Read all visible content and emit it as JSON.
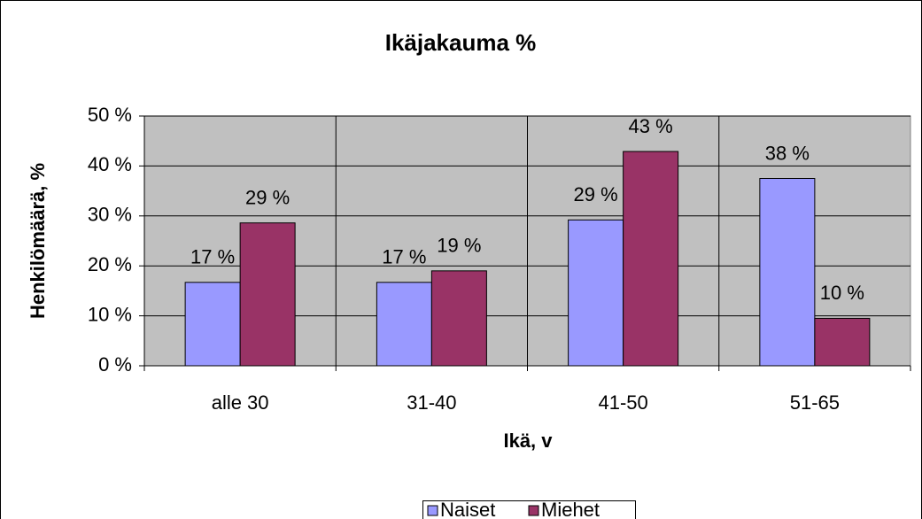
{
  "chart_data": {
    "type": "bar",
    "title": "Ikäjakauma %",
    "x_label": "Ikä, v",
    "y_label": "Henkilömäärä, %",
    "categories": [
      "alle 30",
      "31-40",
      "41-50",
      "51-65"
    ],
    "series": [
      {
        "name": "Naiset",
        "color": "#9999ff",
        "values": [
          16.7,
          16.7,
          29.2,
          37.5
        ],
        "value_labels": [
          "17 %",
          "17 %",
          "29 %",
          "38 %"
        ]
      },
      {
        "name": "Miehet",
        "color": "#993366",
        "values": [
          28.6,
          19.0,
          42.9,
          9.5
        ],
        "value_labels": [
          "29 %",
          "19 %",
          "43 %",
          "10 %"
        ]
      }
    ],
    "ylim": [
      0,
      50
    ],
    "yticks": [
      {
        "value": 0,
        "label": "0 %"
      },
      {
        "value": 10,
        "label": "10 %"
      },
      {
        "value": 20,
        "label": "20 %"
      },
      {
        "value": 30,
        "label": "30 %"
      },
      {
        "value": 40,
        "label": "40 %"
      },
      {
        "value": 50,
        "label": "50 %"
      }
    ],
    "grid": true,
    "legend": "bottom"
  }
}
